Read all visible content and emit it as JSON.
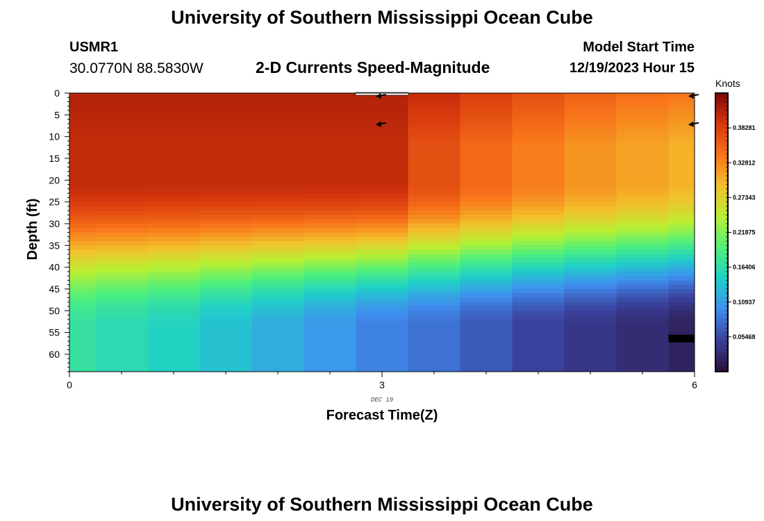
{
  "header": {
    "title": "University of Southern Mississippi Ocean Cube",
    "station_id": "USMR1",
    "coordinates": "30.0770N  88.5830W",
    "subtitle": "2-D Currents Speed-Magnitude",
    "model_start_label": "Model Start Time",
    "model_start_value": "12/19/2023 Hour 15"
  },
  "footer": {
    "title": "University of Southern Mississippi Ocean Cube"
  },
  "chart_data": {
    "type": "heatmap",
    "title": "2-D Currents Speed-Magnitude",
    "xlabel": "Forecast Time(Z)",
    "ylabel": "Depth (ft)",
    "date_label": "DEC 19",
    "x_ticks": [
      "0",
      "3",
      "6"
    ],
    "xlim": [
      0,
      6
    ],
    "ylim": [
      0,
      64
    ],
    "y_ticks": [
      0,
      5,
      10,
      15,
      20,
      25,
      30,
      35,
      40,
      45,
      50,
      55,
      60
    ],
    "colorbar": {
      "unit": "Knots",
      "range": [
        0.0,
        0.4375
      ],
      "tick_values": [
        0.38281,
        0.32812,
        0.27343,
        0.21875,
        0.16406,
        0.10937,
        0.05468
      ],
      "tick_labels": [
        "0.38281",
        "0.32812",
        "0.27343",
        "0.21875",
        "0.16406",
        "0.10937",
        "0.05468"
      ],
      "colors": [
        "#2a1038",
        "#3a3f9a",
        "#3f8ef0",
        "#1fd0c8",
        "#4ff07a",
        "#b9f032",
        "#f3c02c",
        "#f8741a",
        "#d8380d",
        "#7e0606"
      ]
    },
    "times": [
      0,
      0.5,
      1,
      1.5,
      2,
      2.5,
      3,
      3.5,
      4,
      4.5,
      5,
      5.5,
      6
    ],
    "speed_profiles": [
      {
        "time": 0,
        "surface": 0.41,
        "mid": 0.4,
        "bottom": 0.17
      },
      {
        "time": 0.5,
        "surface": 0.41,
        "mid": 0.4,
        "bottom": 0.16
      },
      {
        "time": 1,
        "surface": 0.41,
        "mid": 0.4,
        "bottom": 0.15
      },
      {
        "time": 1.5,
        "surface": 0.41,
        "mid": 0.4,
        "bottom": 0.135
      },
      {
        "time": 2,
        "surface": 0.41,
        "mid": 0.4,
        "bottom": 0.12
      },
      {
        "time": 2.5,
        "surface": 0.41,
        "mid": 0.4,
        "bottom": 0.105
      },
      {
        "time": 3,
        "surface": 0.41,
        "mid": 0.4,
        "bottom": 0.09
      },
      {
        "time": 3.5,
        "surface": 0.4,
        "mid": 0.37,
        "bottom": 0.08
      },
      {
        "time": 4,
        "surface": 0.385,
        "mid": 0.35,
        "bottom": 0.065
      },
      {
        "time": 4.5,
        "surface": 0.37,
        "mid": 0.335,
        "bottom": 0.05
      },
      {
        "time": 5,
        "surface": 0.355,
        "mid": 0.32,
        "bottom": 0.04
      },
      {
        "time": 5.5,
        "surface": 0.345,
        "mid": 0.31,
        "bottom": 0.03
      },
      {
        "time": 6,
        "surface": 0.34,
        "mid": 0.3,
        "bottom": 0.02
      }
    ],
    "vectors": [
      {
        "time": 3,
        "depth": 0.5
      },
      {
        "time": 3,
        "depth": 7
      },
      {
        "time": 6,
        "depth": 0.5
      },
      {
        "time": 6,
        "depth": 7
      }
    ]
  }
}
